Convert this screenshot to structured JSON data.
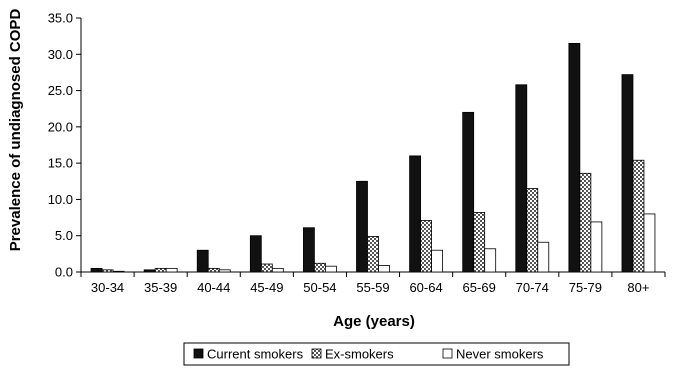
{
  "chart_data": {
    "type": "bar",
    "title": "",
    "xlabel": "Age (years)",
    "ylabel": "Prevalence of undiagnosed COPD",
    "ylim": [
      0,
      35
    ],
    "yticks": [
      "0.0",
      "5.0",
      "10.0",
      "15.0",
      "20.0",
      "25.0",
      "30.0",
      "35.0"
    ],
    "grid": false,
    "legend_position": "bottom",
    "categories": [
      "30-34",
      "35-39",
      "40-44",
      "45-49",
      "50-54",
      "55-59",
      "60-64",
      "65-69",
      "70-74",
      "75-79",
      "80+"
    ],
    "series": [
      {
        "name": "Current smokers",
        "fill": "solid",
        "color": "#111111",
        "values": [
          0.5,
          0.3,
          3.0,
          5.0,
          6.1,
          12.5,
          16.0,
          22.0,
          25.8,
          31.5,
          27.2
        ]
      },
      {
        "name": "Ex-smokers",
        "fill": "checkered",
        "color": "#888888",
        "values": [
          0.3,
          0.5,
          0.5,
          1.1,
          1.2,
          4.9,
          7.1,
          8.2,
          11.5,
          13.6,
          15.4
        ]
      },
      {
        "name": "Never smokers",
        "fill": "hollow",
        "color": "#ffffff",
        "values": [
          0.1,
          0.5,
          0.3,
          0.5,
          0.8,
          0.9,
          3.0,
          3.2,
          4.1,
          6.9,
          8.0
        ]
      }
    ]
  }
}
